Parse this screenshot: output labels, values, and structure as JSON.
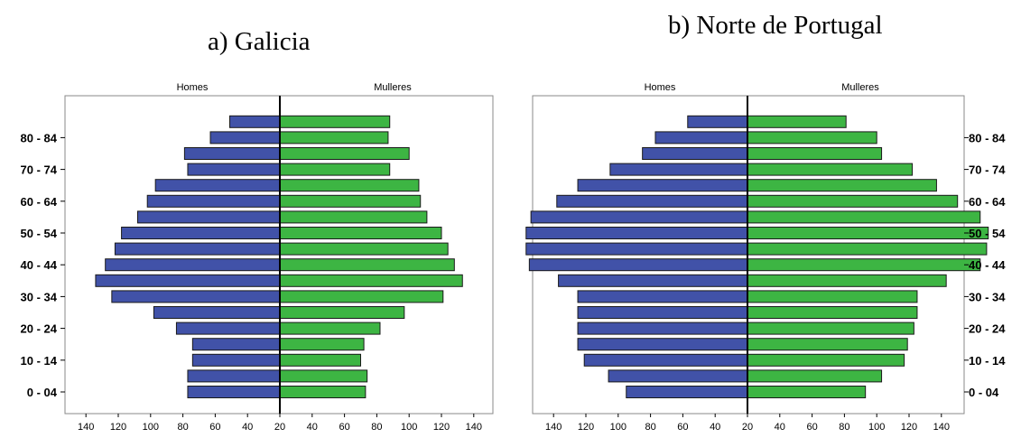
{
  "chart_data": [
    {
      "type": "bar",
      "title": "a)   Galicia",
      "left_label": "Homes",
      "right_label": "Mulleres",
      "age_labels": [
        "0 - 04",
        "10 - 14",
        "20 - 24",
        "30 - 34",
        "40 - 44",
        "50 - 54",
        "60 - 64",
        "70 - 74",
        "80 - 84"
      ],
      "x_ticks_left": [
        "140",
        "120",
        "100",
        "80",
        "60",
        "40",
        "20"
      ],
      "x_ticks_right": [
        "40",
        "60",
        "80",
        "100",
        "120",
        "140"
      ],
      "series": [
        {
          "values": [
            57,
            57,
            54,
            54,
            64,
            78,
            104,
            114,
            108,
            102,
            98,
            88,
            82,
            77,
            57,
            59,
            43,
            31
          ]
        },
        {
          "values": [
            53,
            54,
            50,
            52,
            62,
            77,
            101,
            113,
            108,
            104,
            100,
            91,
            87,
            86,
            68,
            80,
            67,
            68
          ]
        }
      ],
      "colors": {
        "male": "#4152a8",
        "female": "#3db543"
      }
    },
    {
      "type": "bar",
      "title": "b)   Norte de Portugal",
      "left_label": "Homes",
      "right_label": "Mulleres",
      "age_labels": [
        "0 - 04",
        "10 - 14",
        "20 - 24",
        "30 - 34",
        "40 - 44",
        "50 - 54",
        "60 - 64",
        "70 - 74",
        "80 - 84"
      ],
      "x_ticks_left": [
        "140",
        "120",
        "100",
        "80",
        "60",
        "40",
        "20"
      ],
      "x_ticks_right": [
        "40",
        "60",
        "80",
        "100",
        "120",
        "140"
      ],
      "series": [
        {
          "values": [
            75,
            86,
            101,
            105,
            105,
            105,
            105,
            117,
            135,
            137,
            137,
            134,
            118,
            105,
            85,
            65,
            57,
            37
          ]
        },
        {
          "values": [
            73,
            83,
            97,
            99,
            103,
            105,
            105,
            123,
            144,
            148,
            149,
            144,
            130,
            117,
            102,
            83,
            80,
            61
          ]
        }
      ],
      "colors": {
        "male": "#4152a8",
        "female": "#3db543"
      }
    }
  ]
}
